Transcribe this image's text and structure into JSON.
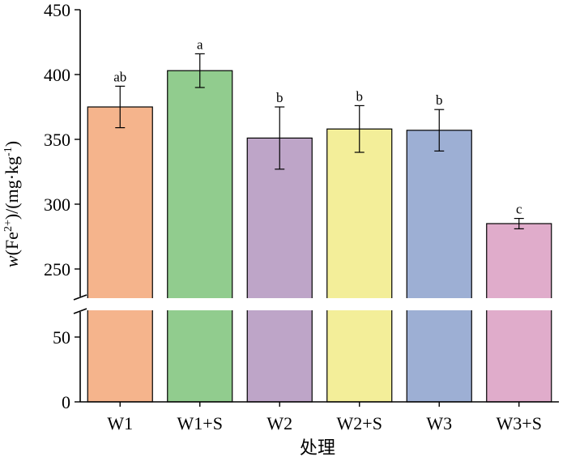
{
  "chart_data": {
    "type": "bar",
    "categories": [
      "W1",
      "W1+S",
      "W2",
      "W2+S",
      "W3",
      "W3+S"
    ],
    "values": [
      375,
      403,
      351,
      358,
      357,
      285
    ],
    "errors": [
      16,
      13,
      24,
      18,
      16,
      4
    ],
    "significance": [
      "ab",
      "a",
      "b",
      "b",
      "b",
      "c"
    ],
    "colors": [
      "#F5B48C",
      "#91CC8E",
      "#BEA5C8",
      "#F3EE99",
      "#9DAFD4",
      "#E0ACCB"
    ],
    "xlabel": "处理",
    "ylabel": {
      "italic": "w",
      "main": "(Fe",
      "sup1": "2+",
      "mid": ")/(mg·kg",
      "sup2": "-1",
      "end": ")"
    },
    "axis_break": {
      "lower_range": [
        0,
        75
      ],
      "upper_range": [
        220,
        450
      ]
    },
    "yticks_lower": [
      0,
      50
    ],
    "yticks_upper": [
      250,
      300,
      350,
      400,
      450
    ]
  }
}
